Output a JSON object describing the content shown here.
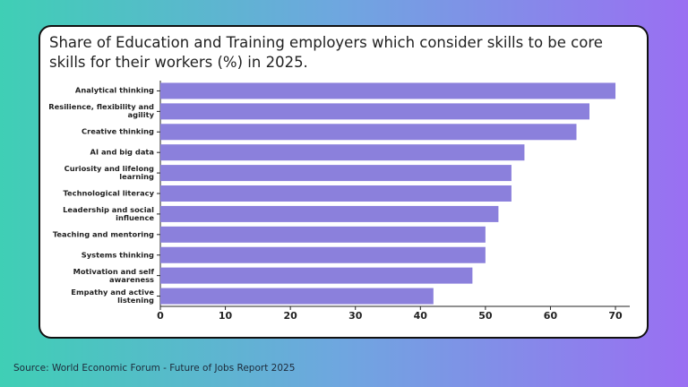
{
  "chart_data": {
    "type": "hbar",
    "title": "Share of Education and Training employers which consider skills to be core skills for their workers (%) in 2025.",
    "categories": [
      "Analytical thinking",
      "Resilience, flexibility and agility",
      "Creative thinking",
      "AI and big data",
      "Curiosity and lifelong learning",
      "Technological literacy",
      "Leadership and social influence",
      "Teaching and mentoring",
      "Systems thinking",
      "Motivation and self awareness",
      "Empathy and active listening"
    ],
    "values": [
      70,
      66,
      64,
      56,
      54,
      54,
      52,
      50,
      50,
      48,
      42
    ],
    "color": "#8b80dc",
    "xlim": [
      0,
      72.2
    ],
    "xticks": [
      0,
      10,
      20,
      30,
      40,
      50,
      60,
      70
    ],
    "grid": false
  },
  "source": "Source: World Economic Forum - Future of Jobs Report 2025"
}
